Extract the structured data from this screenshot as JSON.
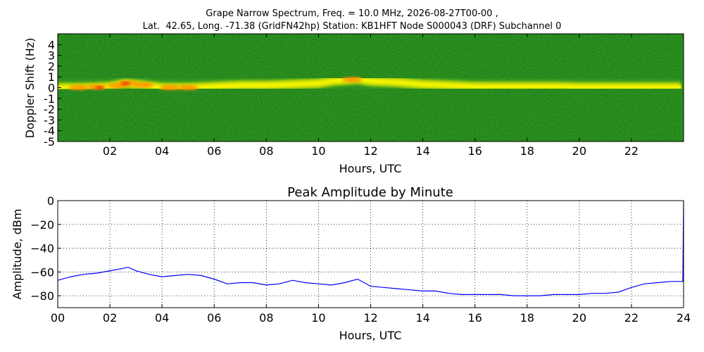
{
  "figure": {
    "title_line1": "Grape Narrow Spectrum, Freq. = 10.0 MHz, 2026-08-27T00-00 ,",
    "title_line2": "Lat.  42.65, Long. -71.38 (GridFN42hp) Station: KB1HFT Node S000043 (DRF) Subchannel 0"
  },
  "colors": {
    "background_green": "#1a7d12",
    "noise_green": "#2d9a1e",
    "signal_yellow": "#f2f200",
    "signal_orange": "#ff8a00",
    "signal_red": "#e52000",
    "line_blue": "#0000ff",
    "grid": "#000000"
  },
  "chart_data": [
    {
      "type": "heatmap",
      "title": "",
      "xlabel": "Hours, UTC",
      "ylabel": "Doppler Shift (Hz)",
      "x_ticks": [
        "02",
        "04",
        "06",
        "08",
        "10",
        "12",
        "14",
        "16",
        "18",
        "20",
        "22"
      ],
      "x_tick_values": [
        2,
        4,
        6,
        8,
        10,
        12,
        14,
        16,
        18,
        20,
        22
      ],
      "y_ticks": [
        "4",
        "3",
        "2",
        "1",
        "0",
        "-1",
        "-2",
        "-3",
        "-4",
        "-5"
      ],
      "y_tick_values": [
        4,
        3,
        2,
        1,
        0,
        -1,
        -2,
        -3,
        -4,
        -5
      ],
      "xlim": [
        0,
        24
      ],
      "ylim": [
        -5,
        5
      ],
      "grid": false,
      "signal_trace": {
        "hours": [
          0,
          1,
          2,
          2.6,
          3,
          4,
          5,
          6,
          7,
          8,
          9,
          10,
          10.5,
          11,
          11.5,
          12,
          13,
          14,
          15,
          16,
          17,
          18,
          19,
          20,
          21,
          22,
          23,
          23.9
        ],
        "doppler_hz": [
          0.0,
          0.0,
          0.1,
          0.4,
          0.3,
          0.0,
          0.0,
          0.1,
          0.2,
          0.2,
          0.3,
          0.4,
          0.6,
          0.7,
          0.8,
          0.6,
          0.5,
          0.3,
          0.2,
          0.1,
          0.1,
          0.1,
          0.1,
          0.05,
          0.05,
          0.05,
          0.05,
          0.05
        ]
      }
    },
    {
      "type": "line",
      "title": "Peak Amplitude by Minute",
      "xlabel": "Hours, UTC",
      "ylabel": "Amplitude, dBm",
      "x_ticks": [
        "00",
        "02",
        "04",
        "06",
        "08",
        "10",
        "12",
        "14",
        "16",
        "18",
        "20",
        "22",
        "24"
      ],
      "x_tick_values": [
        0,
        2,
        4,
        6,
        8,
        10,
        12,
        14,
        16,
        18,
        20,
        22,
        24
      ],
      "y_ticks": [
        "0",
        "−20",
        "−40",
        "−60",
        "−80"
      ],
      "y_tick_values": [
        0,
        -20,
        -40,
        -60,
        -80
      ],
      "xlim": [
        0,
        24
      ],
      "ylim": [
        -90,
        0
      ],
      "grid": true,
      "series": [
        {
          "x": [
            0,
            0.5,
            1,
            1.5,
            2,
            2.5,
            2.7,
            3,
            3.5,
            4,
            4.5,
            5,
            5.5,
            6,
            6.5,
            7,
            7.5,
            8,
            8.5,
            9,
            9.5,
            10,
            10.5,
            11,
            11.5,
            12,
            12.5,
            13,
            13.5,
            14,
            14.5,
            15,
            15.5,
            16,
            16.5,
            17,
            17.5,
            18,
            18.5,
            19,
            19.5,
            20,
            20.5,
            21,
            21.5,
            22,
            22.5,
            23,
            23.5,
            23.97
          ],
          "y": [
            -67,
            -64,
            -62,
            -61,
            -59,
            -57,
            -56,
            -59,
            -62,
            -64,
            -63,
            -62,
            -63,
            -66,
            -70,
            -69,
            -69,
            -71,
            -70,
            -67,
            -69,
            -70,
            -71,
            -69,
            -66,
            -72,
            -73,
            -74,
            -75,
            -76,
            -76,
            -78,
            -79,
            -79,
            -79,
            -79,
            -80,
            -80,
            -80,
            -79,
            -79,
            -79,
            -78,
            -78,
            -77,
            -73,
            -70,
            -69,
            -68,
            -68
          ]
        }
      ]
    }
  ]
}
